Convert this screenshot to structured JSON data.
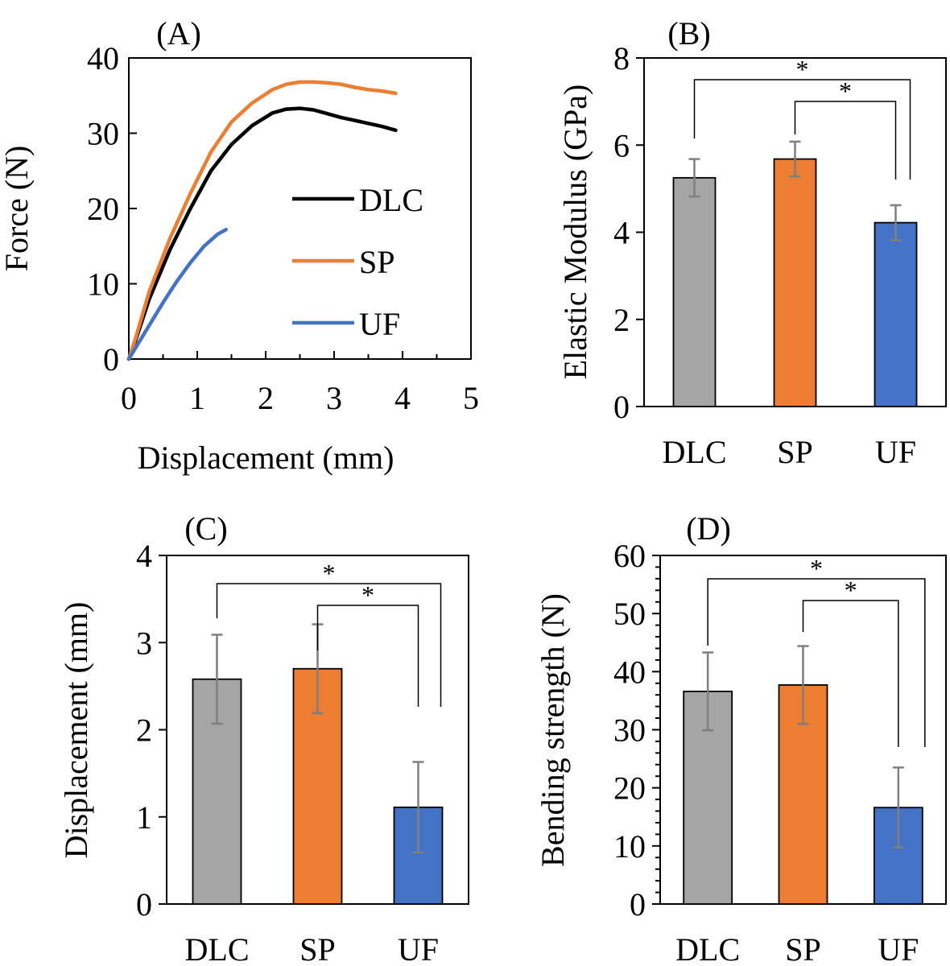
{
  "figure": "four-panel mechanical test results",
  "colors": {
    "DLC": "#a5a5a5",
    "SP": "#ed7d31",
    "UF": "#4472c4",
    "DLC_line": "#000000",
    "error": "#7f7f7f"
  },
  "chart_data": [
    {
      "id": "A",
      "panel_label": "(A)",
      "type": "line",
      "xlabel": "Displacement (mm)",
      "ylabel": "Force (N)",
      "xlim": [
        0,
        5
      ],
      "ylim": [
        0,
        40
      ],
      "xticks": [
        "0",
        "1",
        "2",
        "3",
        "4",
        "5"
      ],
      "yticks": [
        "0",
        "10",
        "20",
        "30",
        "40"
      ],
      "legend_position": "center-right",
      "series": [
        {
          "name": "DLC",
          "color": "#000000",
          "x": [
            0,
            0.1,
            0.3,
            0.6,
            0.9,
            1.2,
            1.5,
            1.8,
            2.1,
            2.3,
            2.5,
            2.7,
            2.9,
            3.1,
            3.3,
            3.5,
            3.7,
            3.9
          ],
          "y": [
            0,
            2.5,
            8,
            14.5,
            20,
            25,
            28.5,
            31,
            32.7,
            33.2,
            33.3,
            33.1,
            32.6,
            32.1,
            31.7,
            31.3,
            30.9,
            30.4
          ]
        },
        {
          "name": "SP",
          "color": "#ed7d31",
          "x": [
            0,
            0.1,
            0.3,
            0.6,
            0.9,
            1.2,
            1.5,
            1.8,
            2.1,
            2.3,
            2.5,
            2.7,
            2.9,
            3.1,
            3.3,
            3.5,
            3.7,
            3.9
          ],
          "y": [
            0,
            2.8,
            9,
            16,
            22,
            27.5,
            31.5,
            34,
            35.8,
            36.5,
            36.8,
            36.8,
            36.7,
            36.5,
            36.1,
            35.8,
            35.6,
            35.3
          ]
        },
        {
          "name": "UF",
          "color": "#4472c4",
          "x": [
            0,
            0.1,
            0.3,
            0.5,
            0.7,
            0.9,
            1.1,
            1.3,
            1.42
          ],
          "y": [
            0,
            1.5,
            4.5,
            7.5,
            10.3,
            12.8,
            15,
            16.6,
            17.2
          ]
        }
      ]
    },
    {
      "id": "B",
      "panel_label": "(B)",
      "type": "bar",
      "categories": [
        "DLC",
        "SP",
        "UF"
      ],
      "values": [
        5.25,
        5.68,
        4.22
      ],
      "errors": [
        0.43,
        0.4,
        0.4
      ],
      "colors": [
        "#a5a5a5",
        "#ed7d31",
        "#4472c4"
      ],
      "ylabel": "Elastic Modulus (GPa)",
      "ylim": [
        0,
        8
      ],
      "yticks": [
        "0",
        "2",
        "4",
        "6",
        "8"
      ],
      "significance": [
        {
          "from": "DLC",
          "to": "UF",
          "label": "*"
        },
        {
          "from": "SP",
          "to": "UF",
          "label": "*"
        }
      ]
    },
    {
      "id": "C",
      "panel_label": "(C)",
      "type": "bar",
      "categories": [
        "DLC",
        "SP",
        "UF"
      ],
      "values": [
        2.58,
        2.7,
        1.11
      ],
      "errors": [
        0.51,
        0.51,
        0.52
      ],
      "colors": [
        "#a5a5a5",
        "#ed7d31",
        "#4472c4"
      ],
      "ylabel": "Displacement (mm)",
      "ylim": [
        0,
        4
      ],
      "yticks": [
        "0",
        "1",
        "2",
        "3",
        "4"
      ],
      "significance": [
        {
          "from": "DLC",
          "to": "UF",
          "label": "*"
        },
        {
          "from": "SP",
          "to": "UF",
          "label": "*"
        }
      ]
    },
    {
      "id": "D",
      "panel_label": "(D)",
      "type": "bar",
      "categories": [
        "DLC",
        "SP",
        "UF"
      ],
      "values": [
        36.6,
        37.7,
        16.6
      ],
      "errors": [
        6.7,
        6.7,
        6.9
      ],
      "colors": [
        "#a5a5a5",
        "#ed7d31",
        "#4472c4"
      ],
      "ylabel": "Bending strength (N)",
      "ylim": [
        0,
        60
      ],
      "yticks": [
        "0",
        "10",
        "20",
        "30",
        "40",
        "50",
        "60"
      ],
      "significance": [
        {
          "from": "DLC",
          "to": "UF",
          "label": "*"
        },
        {
          "from": "SP",
          "to": "UF",
          "label": "*"
        }
      ]
    }
  ]
}
